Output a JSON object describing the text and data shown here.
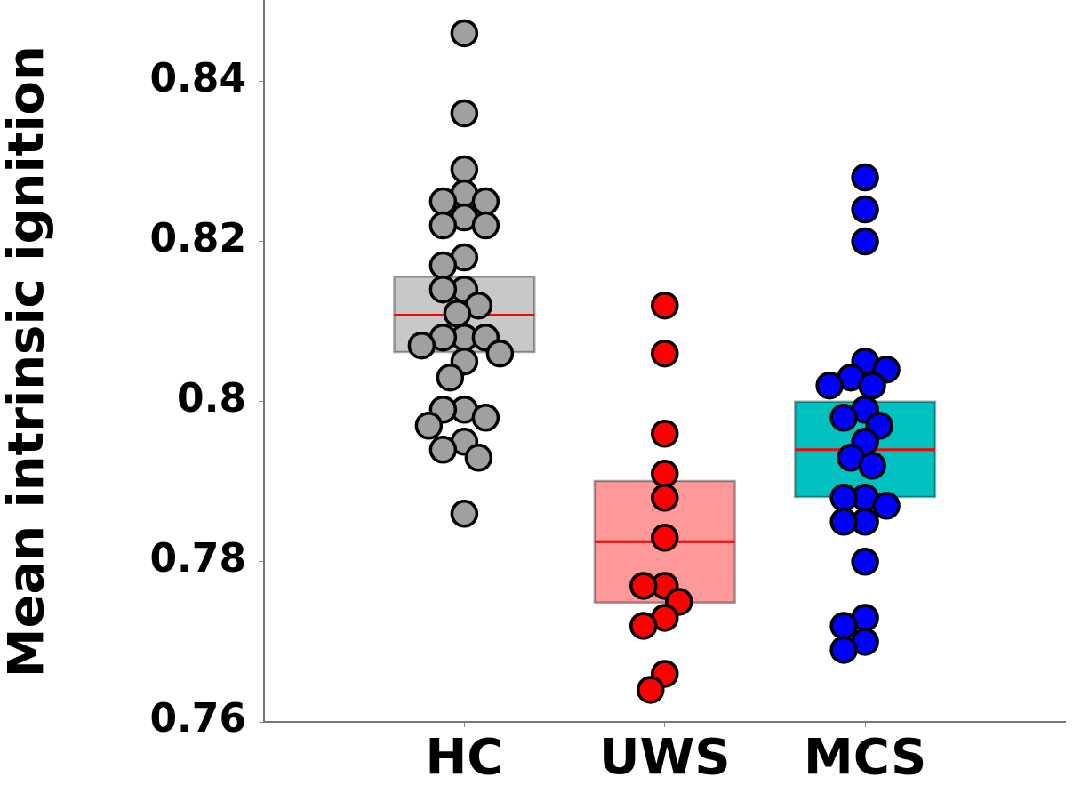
{
  "chart_data": {
    "type": "box",
    "ylabel": "Mean intrinsic ignition",
    "categories": [
      "HC",
      "UWS",
      "MCS"
    ],
    "boxes": [
      {
        "low": 0.8062,
        "q1": 0.8062,
        "median": 0.8108,
        "q3": 0.8156,
        "high": 0.8156
      },
      {
        "low": 0.7749,
        "q1": 0.7749,
        "median": 0.7825,
        "q3": 0.7901,
        "high": 0.7901
      },
      {
        "low": 0.7881,
        "q1": 0.7881,
        "median": 0.794,
        "q3": 0.8,
        "high": 0.8
      }
    ],
    "colors": [
      "#c8c8c8",
      "#ff9999",
      "#00c0c0"
    ],
    "ylim": [
      0.76,
      0.85
    ],
    "yticks": [
      0.76,
      0.78,
      0.8,
      0.82,
      0.84
    ],
    "marker": "circle",
    "series": [
      {
        "type": "scatter",
        "color": "#a0a0a0",
        "x": [
          "HC",
          "HC",
          "HC",
          "HC",
          "HC",
          "HC",
          "HC",
          "HC",
          "HC",
          "HC",
          "HC",
          "HC",
          "HC",
          "HC",
          "HC",
          "HC",
          "HC",
          "HC",
          "HC",
          "HC",
          "HC",
          "HC",
          "HC",
          "HC",
          "HC",
          "HC",
          "HC",
          "HC",
          "HC",
          "HC"
        ],
        "values": [
          0.846,
          0.836,
          0.829,
          0.826,
          0.825,
          0.825,
          0.823,
          0.822,
          0.822,
          0.818,
          0.817,
          0.814,
          0.814,
          0.812,
          0.811,
          0.808,
          0.808,
          0.808,
          0.807,
          0.806,
          0.805,
          0.803,
          0.799,
          0.799,
          0.798,
          0.797,
          0.795,
          0.794,
          0.793,
          0.786
        ]
      },
      {
        "type": "scatter",
        "color": "#ff0000",
        "x": [
          "UWS",
          "UWS",
          "UWS",
          "UWS",
          "UWS",
          "UWS",
          "UWS",
          "UWS",
          "UWS",
          "UWS",
          "UWS",
          "UWS",
          "UWS"
        ],
        "values": [
          0.812,
          0.806,
          0.796,
          0.791,
          0.788,
          0.783,
          0.777,
          0.777,
          0.775,
          0.773,
          0.772,
          0.766,
          0.764
        ]
      },
      {
        "type": "scatter",
        "color": "#0000ff",
        "x": [
          "MCS",
          "MCS",
          "MCS",
          "MCS",
          "MCS",
          "MCS",
          "MCS",
          "MCS",
          "MCS",
          "MCS",
          "MCS",
          "MCS",
          "MCS",
          "MCS",
          "MCS",
          "MCS",
          "MCS",
          "MCS",
          "MCS",
          "MCS",
          "MCS",
          "MCS",
          "MCS",
          "MCS"
        ],
        "values": [
          0.828,
          0.824,
          0.82,
          0.805,
          0.803,
          0.804,
          0.802,
          0.802,
          0.799,
          0.798,
          0.797,
          0.795,
          0.793,
          0.792,
          0.788,
          0.788,
          0.787,
          0.785,
          0.785,
          0.78,
          0.773,
          0.772,
          0.77,
          0.769
        ]
      }
    ]
  }
}
